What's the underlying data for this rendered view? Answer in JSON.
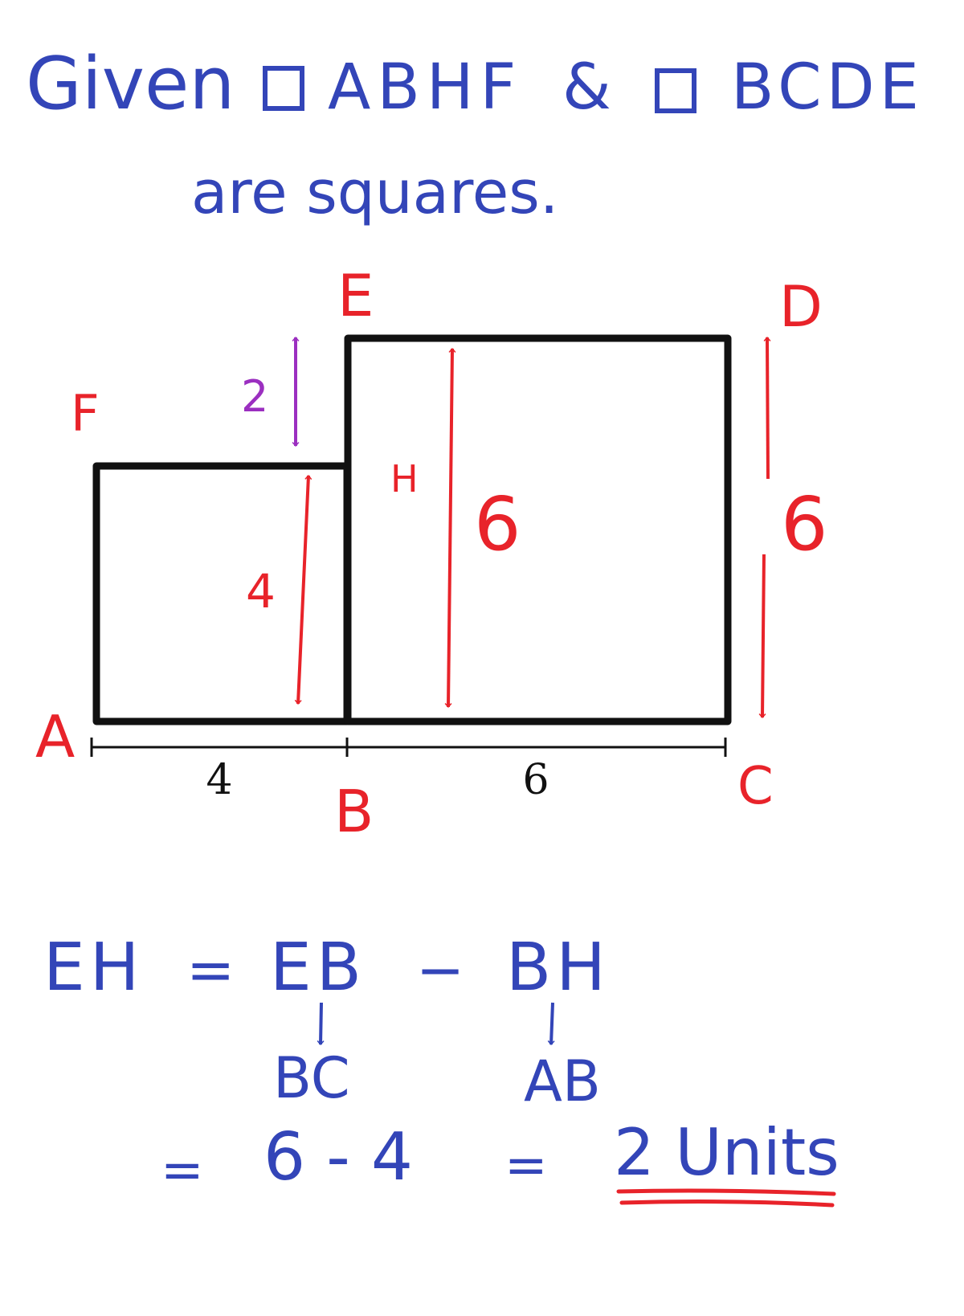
{
  "colors": {
    "blue": "#3345b8",
    "red": "#e8232a",
    "purple": "#9b2fc0",
    "black": "#111111"
  },
  "heading": {
    "given": "Given",
    "square1": "ABHF",
    "and": "&",
    "square2": "BCDE",
    "line2": "are squares."
  },
  "diagram": {
    "points": {
      "A": "A",
      "B": "B",
      "C": "C",
      "D": "D",
      "E": "E",
      "F": "F",
      "H": "H"
    },
    "dims": {
      "AB": "4",
      "BC": "6",
      "left_height": "4",
      "EB_height": "6",
      "DC_height": "6",
      "EH_gap": "2"
    }
  },
  "solution": {
    "line1": {
      "lhs": "EH",
      "eq": "=",
      "t1": "EB",
      "minus": "−",
      "t2": "BH"
    },
    "sub1": "BC",
    "sub2": "AB",
    "line3": {
      "eq": "=",
      "expr": "6 - 4",
      "eq2": "=",
      "answer": "2 Units"
    }
  }
}
